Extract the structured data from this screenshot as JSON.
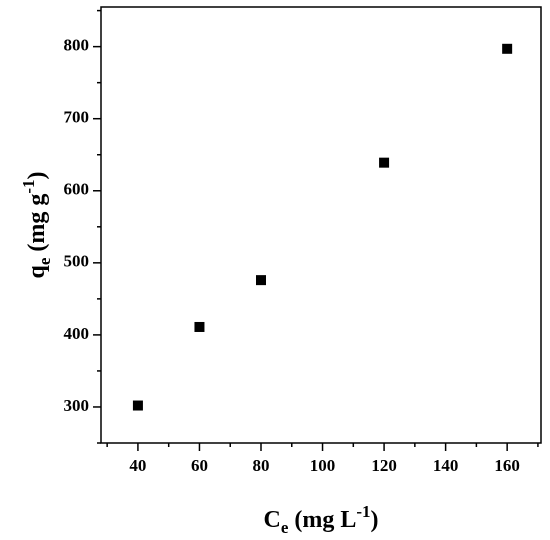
{
  "chart_data": {
    "type": "scatter",
    "xlabel": [
      "C",
      "e",
      " (mg L",
      "-1",
      ")"
    ],
    "ylabel": [
      "q",
      "e",
      " (mg g",
      "-1",
      ")"
    ],
    "series": [
      {
        "color": "#000000",
        "x": [
          40,
          60,
          80,
          120,
          160
        ],
        "values": [
          302,
          411,
          476,
          639,
          797
        ]
      }
    ],
    "xlim": [
      28,
      171
    ],
    "xticks": [
      40,
      60,
      80,
      100,
      120,
      140,
      160
    ],
    "xminorticks": [
      30,
      50,
      70,
      90,
      110,
      130,
      150,
      170
    ],
    "ylim": [
      250,
      855
    ],
    "yticks": [
      300,
      400,
      500,
      600,
      700,
      800
    ],
    "yminorticks": [
      250,
      350,
      450,
      550,
      650,
      750,
      850
    ]
  }
}
